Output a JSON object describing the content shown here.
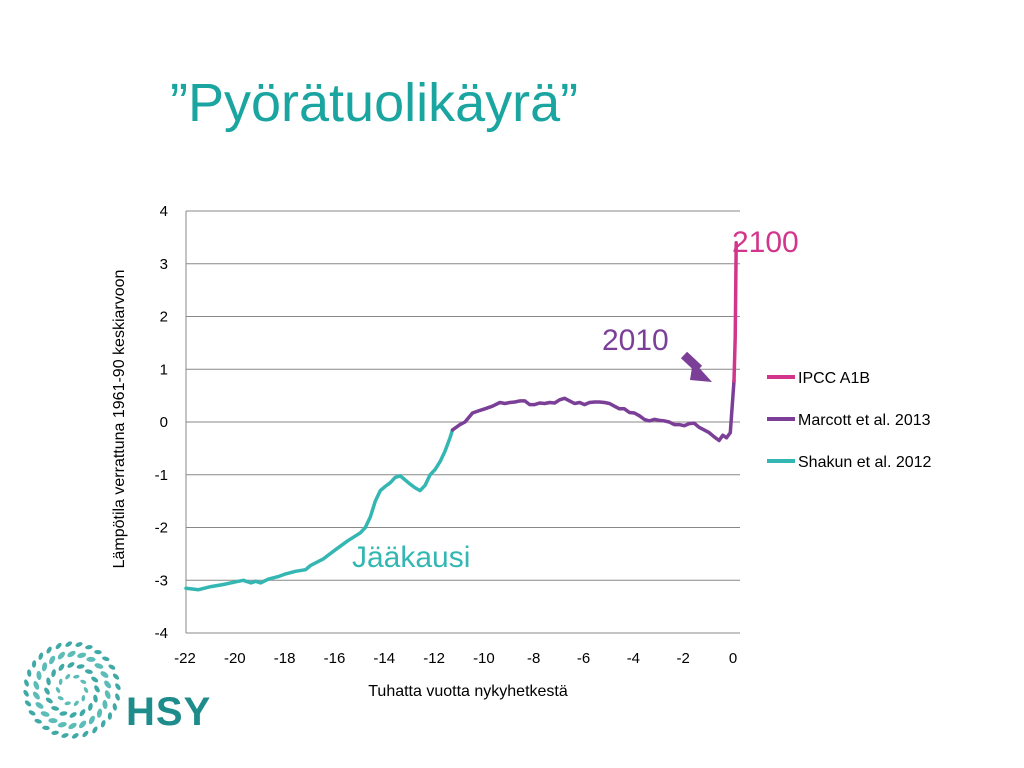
{
  "slide": {
    "title": "”Pyörätuolikäyrä”"
  },
  "logo": {
    "text": "HSY"
  },
  "colors": {
    "title": "#1aa5a0",
    "ipcc": "#d1368c",
    "marcott": "#7b3f98",
    "shakun": "#34b7b3",
    "grid": "#888888",
    "logo": "#1e8c8a"
  },
  "chart_data": {
    "type": "line",
    "title": "",
    "xlabel": "Tuhatta vuotta nykyhetkestä",
    "ylabel": "Lämpötila verrattuna 1961-90 keskiarvoon",
    "xlim": [
      -22,
      1
    ],
    "ylim": [
      -4,
      4
    ],
    "x_ticks": [
      "-22",
      "-20",
      "-18",
      "-16",
      "-14",
      "-12",
      "-10",
      "-8",
      "-6",
      "-4",
      "-2",
      "0"
    ],
    "y_ticks": [
      "4",
      "3",
      "2",
      "1",
      "0",
      "-1",
      "-2",
      "-3",
      "-4"
    ],
    "grid": true,
    "legend_position": "right",
    "series": [
      {
        "name": "IPCC A1B",
        "color": "#d1368c",
        "points": [
          [
            0.0,
            0.78
          ],
          [
            0.05,
            1.6
          ],
          [
            0.07,
            2.5
          ],
          [
            0.09,
            3.4
          ]
        ]
      },
      {
        "name": "Marcott et al. 2013",
        "color": "#7b3f98",
        "points": [
          [
            -11.3,
            -0.15
          ],
          [
            -11.0,
            -0.05
          ],
          [
            -10.8,
            0.0
          ],
          [
            -10.5,
            0.17
          ],
          [
            -10.2,
            0.22
          ],
          [
            -10.0,
            0.25
          ],
          [
            -9.7,
            0.3
          ],
          [
            -9.4,
            0.37
          ],
          [
            -9.2,
            0.35
          ],
          [
            -9.0,
            0.37
          ],
          [
            -8.8,
            0.38
          ],
          [
            -8.6,
            0.4
          ],
          [
            -8.4,
            0.4
          ],
          [
            -8.2,
            0.33
          ],
          [
            -8.0,
            0.33
          ],
          [
            -7.8,
            0.36
          ],
          [
            -7.6,
            0.35
          ],
          [
            -7.4,
            0.37
          ],
          [
            -7.2,
            0.36
          ],
          [
            -7.0,
            0.42
          ],
          [
            -6.8,
            0.45
          ],
          [
            -6.6,
            0.4
          ],
          [
            -6.4,
            0.35
          ],
          [
            -6.2,
            0.37
          ],
          [
            -6.0,
            0.33
          ],
          [
            -5.8,
            0.37
          ],
          [
            -5.6,
            0.38
          ],
          [
            -5.4,
            0.38
          ],
          [
            -5.2,
            0.37
          ],
          [
            -5.0,
            0.35
          ],
          [
            -4.8,
            0.3
          ],
          [
            -4.6,
            0.25
          ],
          [
            -4.4,
            0.25
          ],
          [
            -4.2,
            0.18
          ],
          [
            -4.0,
            0.17
          ],
          [
            -3.8,
            0.12
          ],
          [
            -3.6,
            0.05
          ],
          [
            -3.4,
            0.02
          ],
          [
            -3.2,
            0.05
          ],
          [
            -3.0,
            0.03
          ],
          [
            -2.8,
            0.02
          ],
          [
            -2.6,
            0.0
          ],
          [
            -2.4,
            -0.05
          ],
          [
            -2.2,
            -0.05
          ],
          [
            -2.0,
            -0.07
          ],
          [
            -1.8,
            -0.03
          ],
          [
            -1.6,
            -0.02
          ],
          [
            -1.4,
            -0.1
          ],
          [
            -1.2,
            -0.15
          ],
          [
            -1.0,
            -0.2
          ],
          [
            -0.8,
            -0.28
          ],
          [
            -0.6,
            -0.35
          ],
          [
            -0.45,
            -0.25
          ],
          [
            -0.3,
            -0.3
          ],
          [
            -0.15,
            -0.2
          ],
          [
            0.0,
            0.78
          ]
        ]
      },
      {
        "name": "Shakun et al. 2012",
        "color": "#34b7b3",
        "points": [
          [
            -22.0,
            -3.15
          ],
          [
            -21.5,
            -3.18
          ],
          [
            -21.0,
            -3.12
          ],
          [
            -20.5,
            -3.08
          ],
          [
            -20.0,
            -3.03
          ],
          [
            -19.7,
            -3.0
          ],
          [
            -19.4,
            -3.05
          ],
          [
            -19.2,
            -3.02
          ],
          [
            -19.0,
            -3.05
          ],
          [
            -18.7,
            -2.98
          ],
          [
            -18.3,
            -2.93
          ],
          [
            -18.0,
            -2.88
          ],
          [
            -17.6,
            -2.83
          ],
          [
            -17.2,
            -2.8
          ],
          [
            -17.0,
            -2.72
          ],
          [
            -16.5,
            -2.6
          ],
          [
            -16.0,
            -2.42
          ],
          [
            -15.5,
            -2.25
          ],
          [
            -15.0,
            -2.1
          ],
          [
            -14.8,
            -2.0
          ],
          [
            -14.6,
            -1.8
          ],
          [
            -14.4,
            -1.5
          ],
          [
            -14.2,
            -1.3
          ],
          [
            -14.0,
            -1.22
          ],
          [
            -13.8,
            -1.15
          ],
          [
            -13.6,
            -1.05
          ],
          [
            -13.4,
            -1.02
          ],
          [
            -13.2,
            -1.1
          ],
          [
            -13.0,
            -1.18
          ],
          [
            -12.8,
            -1.25
          ],
          [
            -12.6,
            -1.3
          ],
          [
            -12.4,
            -1.2
          ],
          [
            -12.2,
            -1.0
          ],
          [
            -12.0,
            -0.9
          ],
          [
            -11.8,
            -0.75
          ],
          [
            -11.6,
            -0.55
          ],
          [
            -11.4,
            -0.3
          ],
          [
            -11.3,
            -0.15
          ]
        ]
      }
    ],
    "annotations": [
      {
        "text": "2100",
        "color": "#d1368c"
      },
      {
        "text": "2010",
        "color": "#7b3f98"
      },
      {
        "text": "Jääkausi",
        "color": "#34b7b3"
      }
    ]
  }
}
